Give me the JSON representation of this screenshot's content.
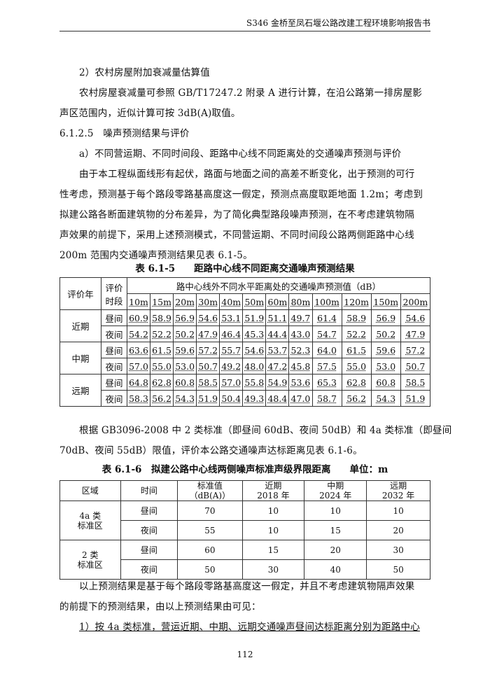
{
  "header": "S346 金桥至凤石堰公路改建工程环境影响报告书",
  "paragraphs": [
    "2）农村房屋附加衰减量估算值",
    "农村房屋衰减量可参照 GB/T17247.2 附录 A 进行计算，在沿公路第一排房屋影",
    "声区范围内，近似计算可按 3dB(A)取值。",
    "6.1.2.5　噪声预测结果与评价",
    "a）不同营运期、不同时间段、距路中心线不同距离处的交通噪声预测与评价",
    "由于本工程纵面线形有起伏，路面与地面之间的高差不断变化，出于预测的可行",
    "性考虑，预测基于每个路段零路基高度这一假定，预测点高度取距地面 1.2m；考虑到",
    "拟建公路各断面建筑物的分布差异，为了简化典型路段噪声预测，在不考虑建筑物隔",
    "声效果的前提下，采用上述预测模式，不同营运期、不同时间段公路两侧距路中心线",
    "200m 范围内交通噪声预测结果见表 6.1-5。"
  ],
  "table1": {
    "caption": "表 6.1-5　　距路中心线不同距离交通噪声预测结果",
    "h_year": "评价年",
    "h_period": "评价时段",
    "h_group": "路中心线外不同水平距离处的交通噪声预测值（dB）",
    "distances": [
      "10m",
      "15m",
      "20m",
      "30m",
      "40m",
      "50m",
      "60m",
      "80m",
      "100m",
      "120m",
      "150m",
      "200m"
    ],
    "rows": [
      {
        "year": "近期",
        "period": "昼间",
        "values": [
          "60.9",
          "58.9",
          "56.9",
          "54.6",
          "53.1",
          "51.9",
          "51.1",
          "49.7",
          "61.4",
          "58.9",
          "56.9",
          "54.6"
        ]
      },
      {
        "year": "近期",
        "period": "夜间",
        "values": [
          "54.2",
          "52.2",
          "50.2",
          "47.9",
          "46.4",
          "45.3",
          "44.4",
          "43.0",
          "54.7",
          "52.2",
          "50.2",
          "47.9"
        ]
      },
      {
        "year": "中期",
        "period": "昼间",
        "values": [
          "63.6",
          "61.5",
          "59.6",
          "57.2",
          "55.7",
          "54.6",
          "53.7",
          "52.3",
          "64.0",
          "61.5",
          "59.6",
          "57.2"
        ]
      },
      {
        "year": "中期",
        "period": "夜间",
        "values": [
          "57.0",
          "55.0",
          "53.0",
          "50.7",
          "49.2",
          "48.0",
          "47.2",
          "45.8",
          "57.5",
          "55.0",
          "53.0",
          "50.7"
        ]
      },
      {
        "year": "远期",
        "period": "昼间",
        "values": [
          "64.8",
          "62.8",
          "60.8",
          "58.5",
          "57.0",
          "55.8",
          "54.9",
          "53.6",
          "65.3",
          "62.8",
          "60.8",
          "58.5"
        ]
      },
      {
        "year": "远期",
        "period": "夜间",
        "values": [
          "58.3",
          "56.2",
          "54.3",
          "51.9",
          "50.4",
          "49.3",
          "48.4",
          "47.0",
          "58.7",
          "56.2",
          "54.3",
          "51.9"
        ]
      }
    ]
  },
  "paragraphs2": [
    "根据 GB3096-2008 中 2 类标准（即昼间 60dB、夜间 50dB）和 4a 类标准（即昼间",
    "70dB、夜间 55dB）限值，评价本公路交通噪声达标距离见表 6.1-6。"
  ],
  "table2": {
    "caption": "表 6.1-6　拟建公路中心线两侧噪声标准声级界限距离　　单位：m",
    "headers": [
      "区域",
      "时间",
      "标准值\n（dB(A)）",
      "近期\n2018 年",
      "中期\n2024 年",
      "远期\n2032 年"
    ],
    "rows": [
      {
        "zone": "4a 类\n标准区",
        "time": "昼间",
        "values": [
          "70",
          "10",
          "10",
          "10"
        ]
      },
      {
        "zone": "4a 类\n标准区",
        "time": "夜间",
        "values": [
          "55",
          "10",
          "15",
          "20"
        ]
      },
      {
        "zone": "2 类\n标准区",
        "time": "昼间",
        "values": [
          "60",
          "15",
          "20",
          "30"
        ]
      },
      {
        "zone": "2 类\n标准区",
        "time": "夜间",
        "values": [
          "50",
          "30",
          "40",
          "50"
        ]
      }
    ]
  },
  "paragraphs3": [
    "以上预测结果是基于每个路段零路基高度这一假定，并且不考虑建筑物隔声效果",
    "的前提下的预测结果，由以上预测结果由可见：",
    "1）按 4a 类标准，营运近期、中期、远期交通噪声昼间达标距离分别为距路中心"
  ],
  "page_number": "112"
}
